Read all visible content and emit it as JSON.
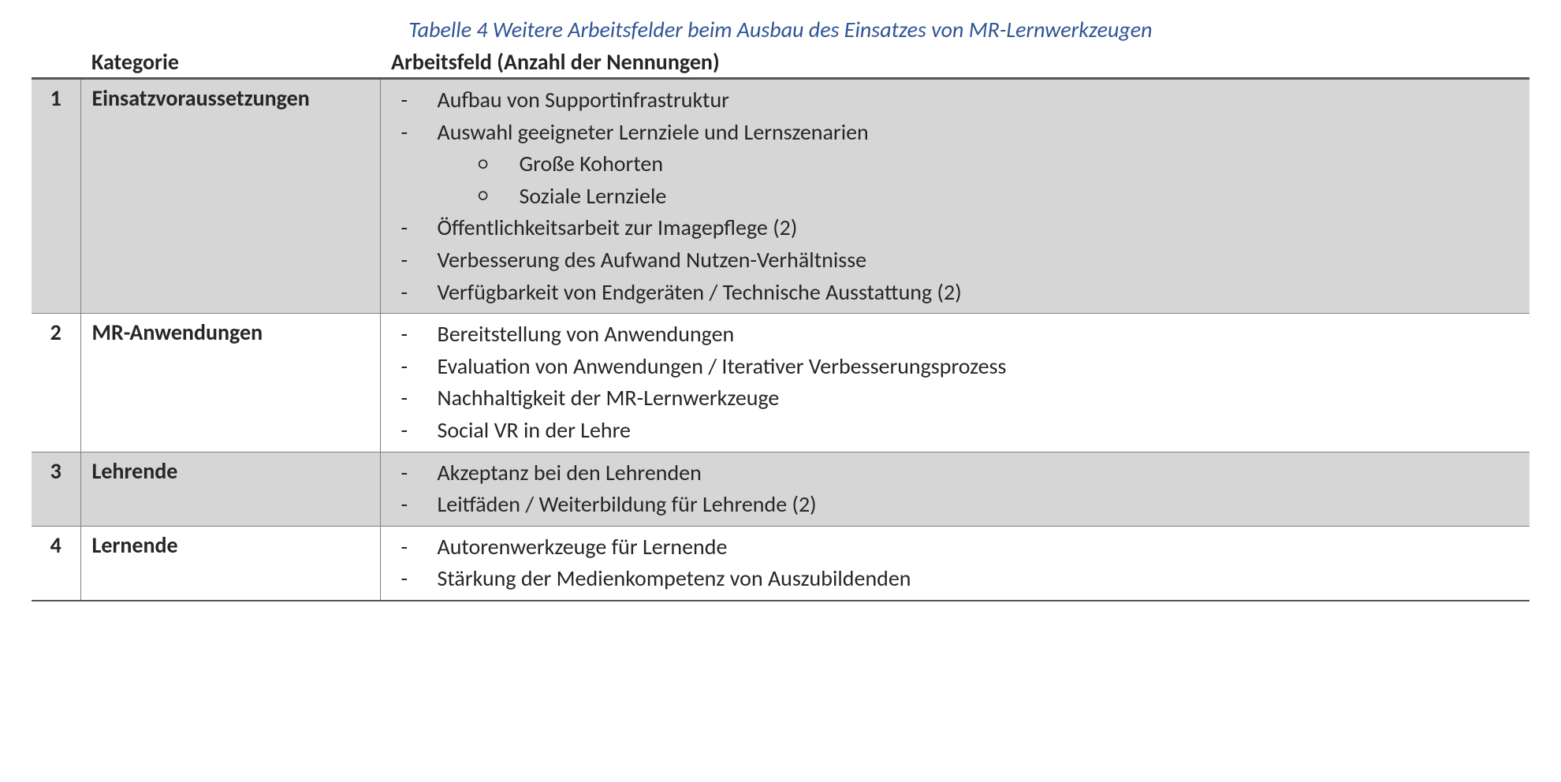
{
  "caption": "Tabelle 4 Weitere Arbeitsfelder beim Ausbau des Einsatzes von MR-Lernwerkzeugen",
  "headers": {
    "num": "",
    "category": "Kategorie",
    "field": "Arbeitsfeld (Anzahl der Nennungen)"
  },
  "rows": [
    {
      "num": "1",
      "category": "Einsatzvoraussetzungen",
      "shaded": true,
      "items": [
        {
          "text": "Aufbau von Supportinfrastruktur"
        },
        {
          "text": "Auswahl geeigneter Lernziele und Lernszenarien",
          "sub": [
            "Große Kohorten",
            "Soziale Lernziele"
          ]
        },
        {
          "text": "Öffentlichkeitsarbeit zur Imagepflege (2)"
        },
        {
          "text": "Verbesserung des Aufwand Nutzen-Verhältnisse"
        },
        {
          "text": "Verfügbarkeit von Endgeräten / Technische Ausstattung (2)"
        }
      ]
    },
    {
      "num": "2",
      "category": "MR-Anwendungen",
      "shaded": false,
      "items": [
        {
          "text": "Bereitstellung von Anwendungen"
        },
        {
          "text": "Evaluation von Anwendungen / Iterativer Verbesserungsprozess"
        },
        {
          "text": "Nachhaltigkeit der MR-Lernwerkzeuge"
        },
        {
          "text": "Social VR in der Lehre"
        }
      ]
    },
    {
      "num": "3",
      "category": "Lehrende",
      "shaded": true,
      "items": [
        {
          "text": "Akzeptanz bei den Lehrenden"
        },
        {
          "text": "Leitfäden / Weiterbildung für Lehrende (2)"
        }
      ]
    },
    {
      "num": "4",
      "category": "Lernende",
      "shaded": false,
      "items": [
        {
          "text": "Autorenwerkzeuge für Lernende"
        },
        {
          "text": "Stärkung der Medienkompetenz von Auszubildenden"
        }
      ]
    }
  ],
  "colors": {
    "caption": "#2f5496",
    "shade": "#d6d6d6",
    "border": "#808080",
    "thick_border": "#555555"
  },
  "typography": {
    "base_fontsize_pt": 21,
    "font_family": "Calibri"
  }
}
